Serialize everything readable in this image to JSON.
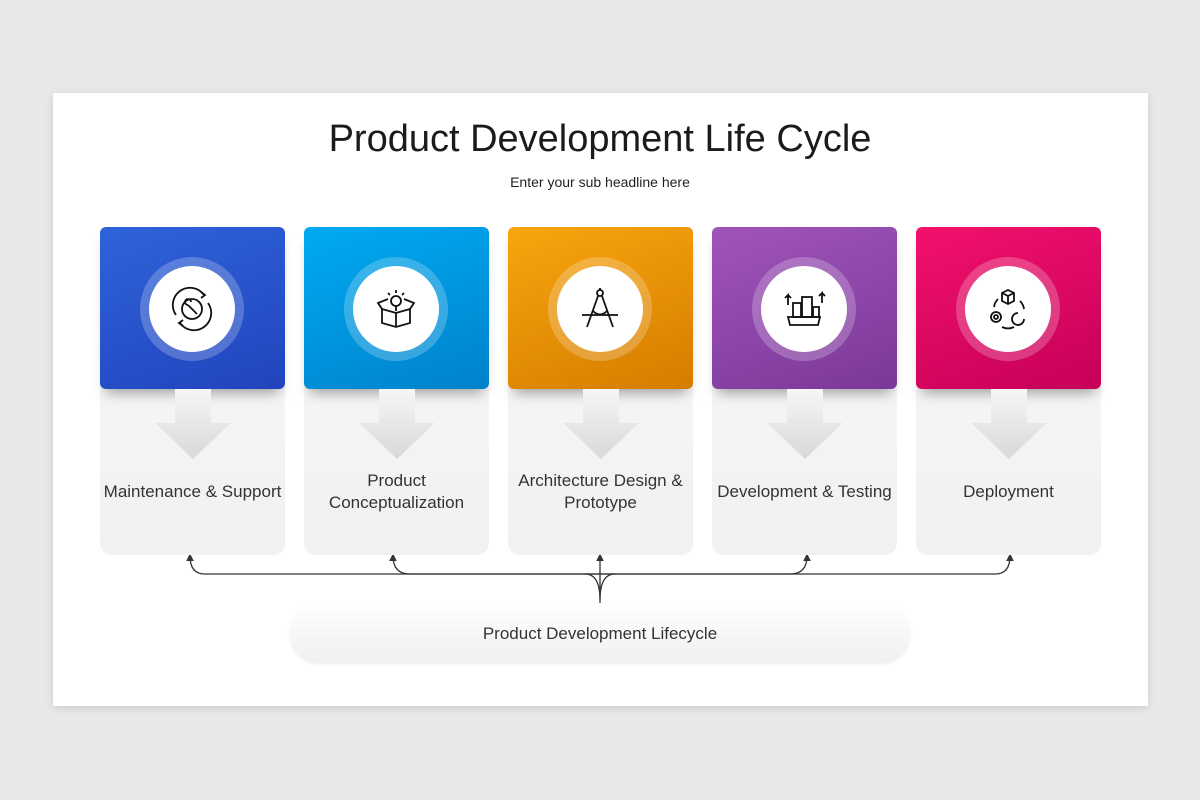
{
  "title": "Product Development Life Cycle",
  "subtitle": "Enter your sub headline here",
  "stages": [
    {
      "label": "Maintenance & Support",
      "icon": "gear-wrench-cycle-icon",
      "color_top": "#2f63d9",
      "color_bottom": "#2144bd"
    },
    {
      "label": "Product Conceptualization",
      "icon": "idea-box-icon",
      "color_top": "#00aaf2",
      "color_bottom": "#0082cb"
    },
    {
      "label": "Architecture Design & Prototype",
      "icon": "compass-drafting-icon",
      "color_top": "#f8a60e",
      "color_bottom": "#d67c00"
    },
    {
      "label": "Development & Testing",
      "icon": "factory-gear-icon",
      "color_top": "#a054bb",
      "color_bottom": "#7b3898"
    },
    {
      "label": "Deployment",
      "icon": "box-cycle-icon",
      "color_top": "#f2116c",
      "color_bottom": "#c60058"
    }
  ],
  "center_label": "Product Development Lifecycle"
}
